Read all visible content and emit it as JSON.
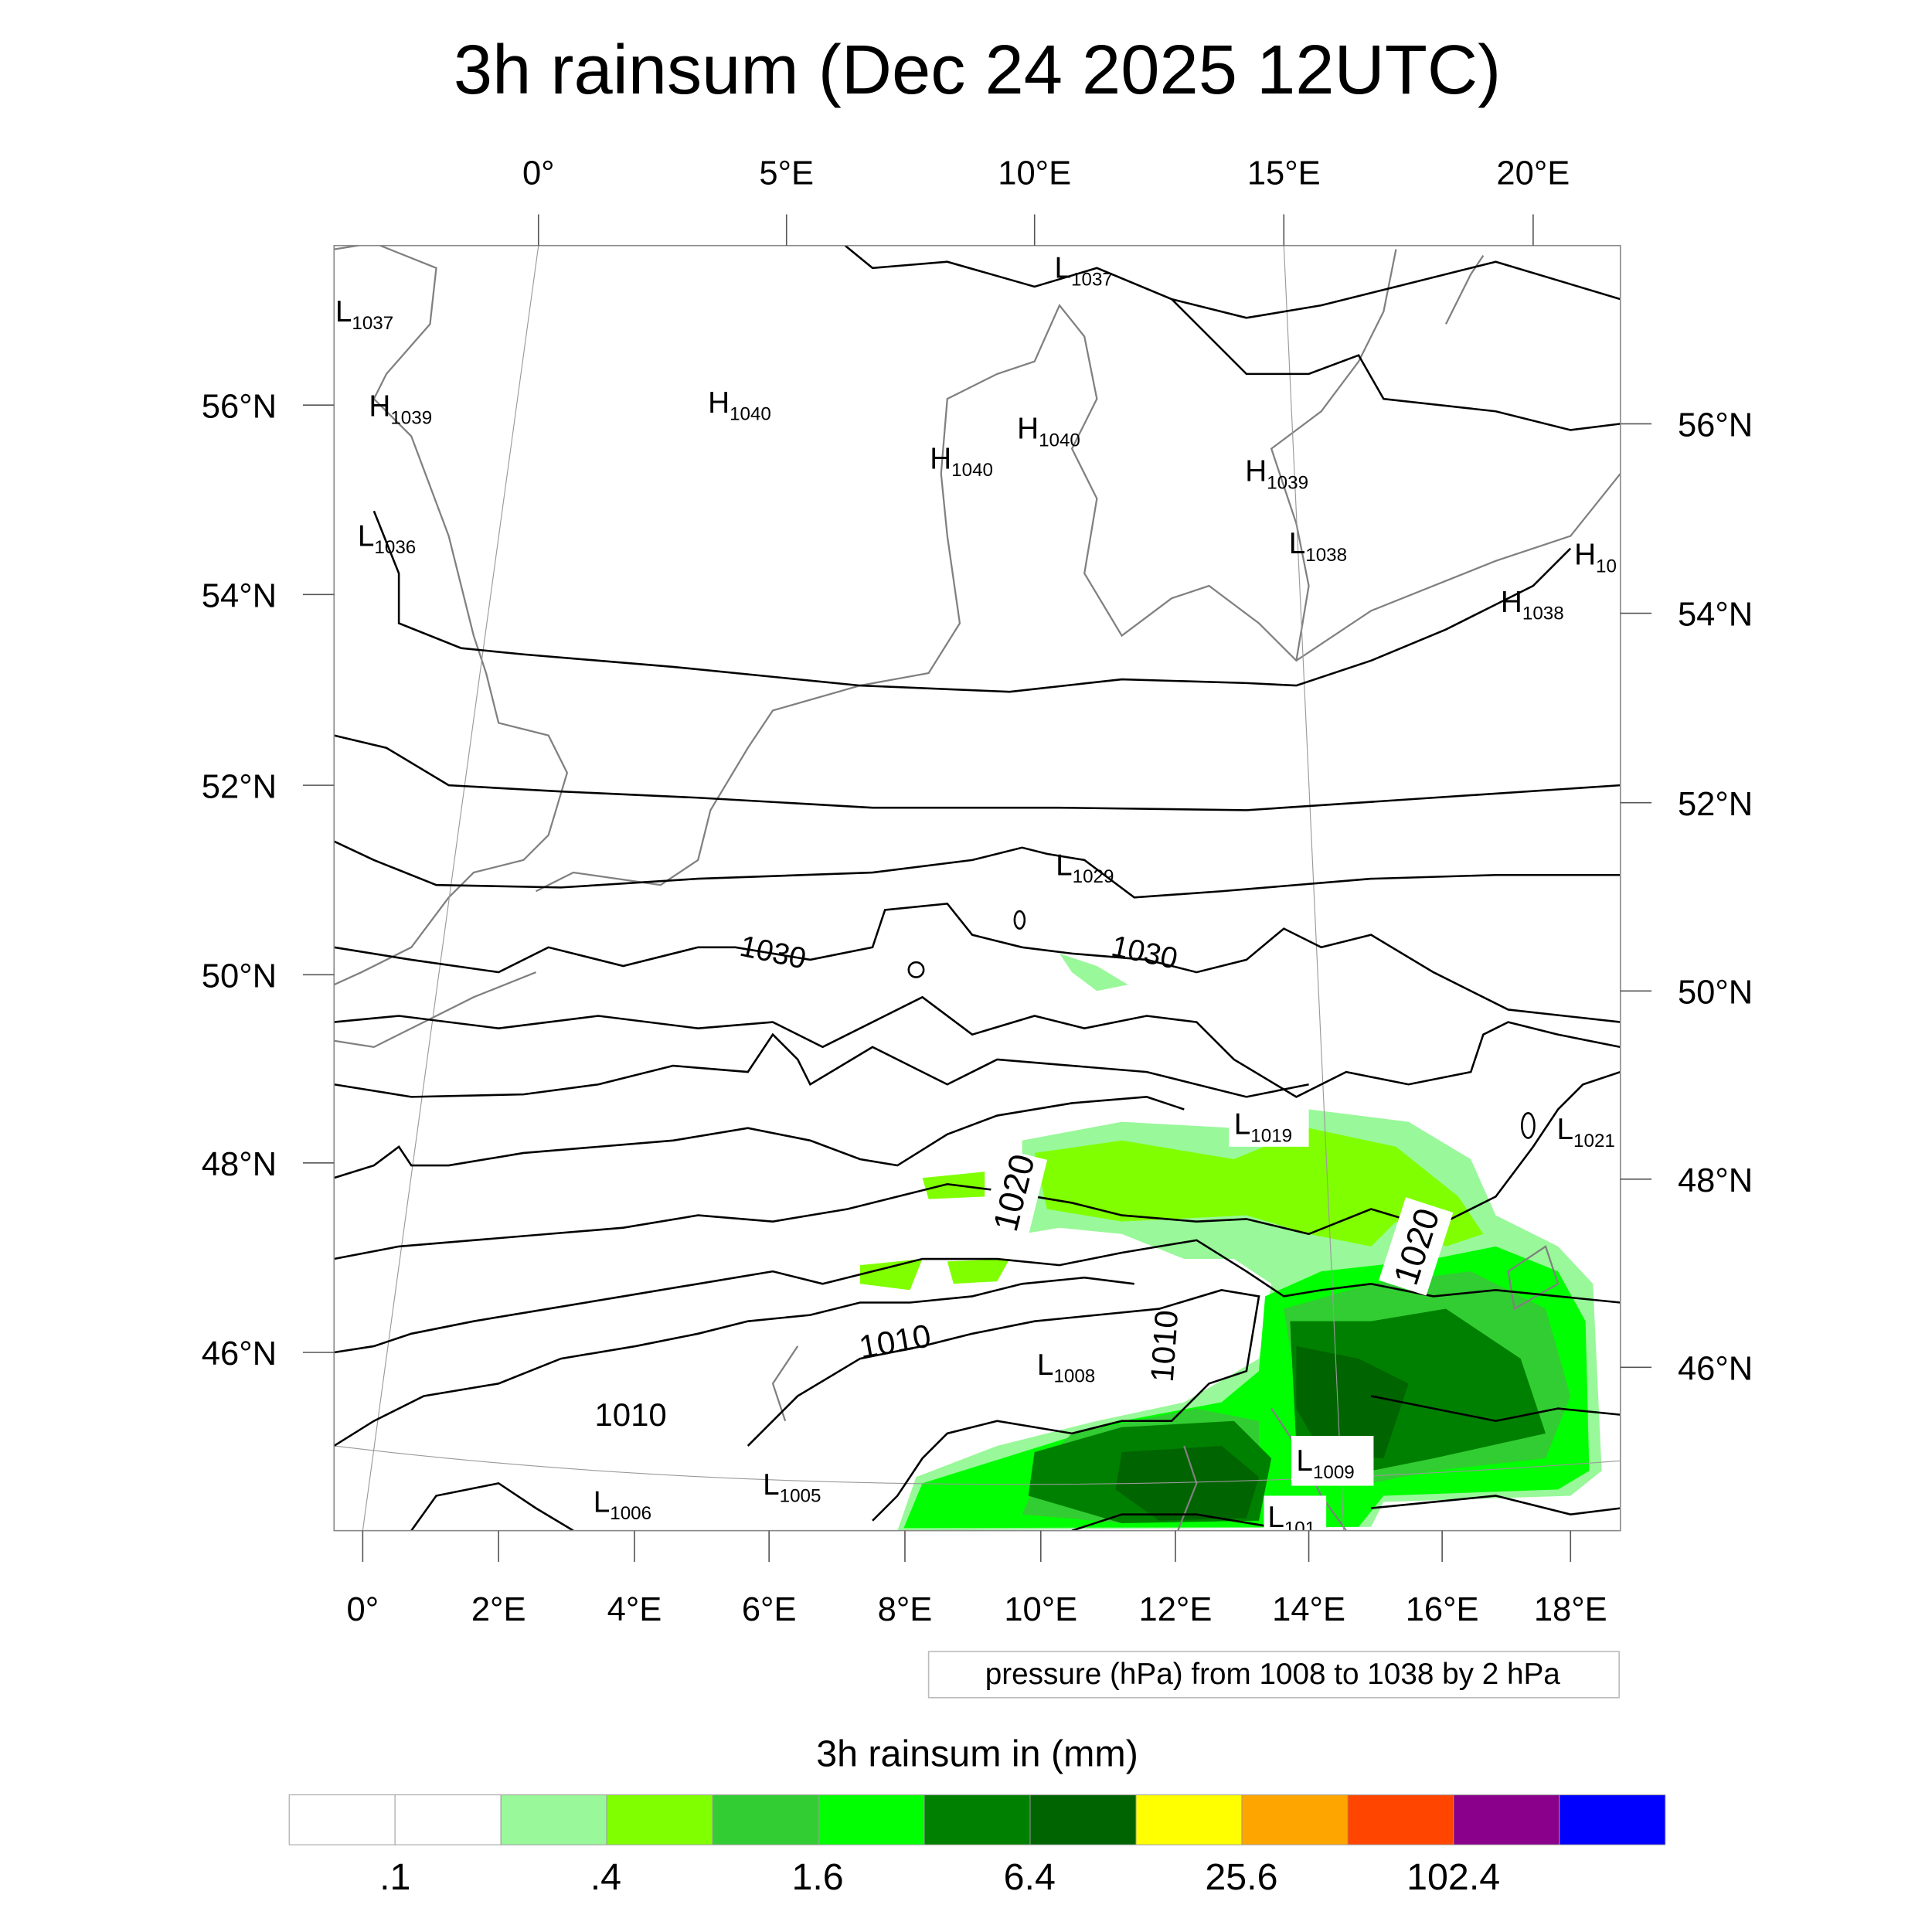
{
  "title": "3h rainsum (Dec 24 2025 12UTC)",
  "top_lon_labels": [
    "0°",
    "5°E",
    "10°E",
    "15°E",
    "20°E"
  ],
  "bottom_lon_labels": [
    "0°",
    "2°E",
    "4°E",
    "6°E",
    "8°E",
    "10°E",
    "12°E",
    "14°E",
    "16°E",
    "18°E"
  ],
  "left_lat_labels": [
    "56°N",
    "54°N",
    "52°N",
    "50°N",
    "48°N",
    "46°N"
  ],
  "right_lat_labels": [
    "56°N",
    "54°N",
    "52°N",
    "50°N",
    "48°N",
    "46°N"
  ],
  "pressure_centers": [
    {
      "type": "L",
      "value": "1037"
    },
    {
      "type": "L",
      "value": "1037"
    },
    {
      "type": "H",
      "value": "1039"
    },
    {
      "type": "H",
      "value": "1040"
    },
    {
      "type": "H",
      "value": "1040"
    },
    {
      "type": "H",
      "value": "1040"
    },
    {
      "type": "H",
      "value": "1039"
    },
    {
      "type": "L",
      "value": "1036"
    },
    {
      "type": "L",
      "value": "1038"
    },
    {
      "type": "H",
      "value": "10"
    },
    {
      "type": "H",
      "value": "1038"
    },
    {
      "type": "L",
      "value": "1029"
    },
    {
      "type": "L",
      "value": "1019"
    },
    {
      "type": "L",
      "value": "1021"
    },
    {
      "type": "L",
      "value": "1008"
    },
    {
      "type": "L",
      "value": "1009"
    },
    {
      "type": "L",
      "value": "1005"
    },
    {
      "type": "L",
      "value": "1006"
    },
    {
      "type": "L",
      "value": "101"
    }
  ],
  "contour_labels": [
    "1030",
    "1030",
    "1020",
    "1020",
    "1010",
    "1010",
    "1010"
  ],
  "pressure_legend": "pressure (hPa) from 1008 to 1038 by 2 hPa",
  "colorbar": {
    "title": "3h rainsum in (mm)",
    "colors": [
      "#ffffff",
      "#ffffff",
      "#99f899",
      "#80ff00",
      "#32cd32",
      "#00ff00",
      "#008000",
      "#006400",
      "#ffff00",
      "#ffa500",
      "#ff4500",
      "#8b008b",
      "#0000ff"
    ],
    "labels": [
      ".1",
      ".4",
      "1.6",
      "6.4",
      "25.6",
      "102.4"
    ]
  }
}
